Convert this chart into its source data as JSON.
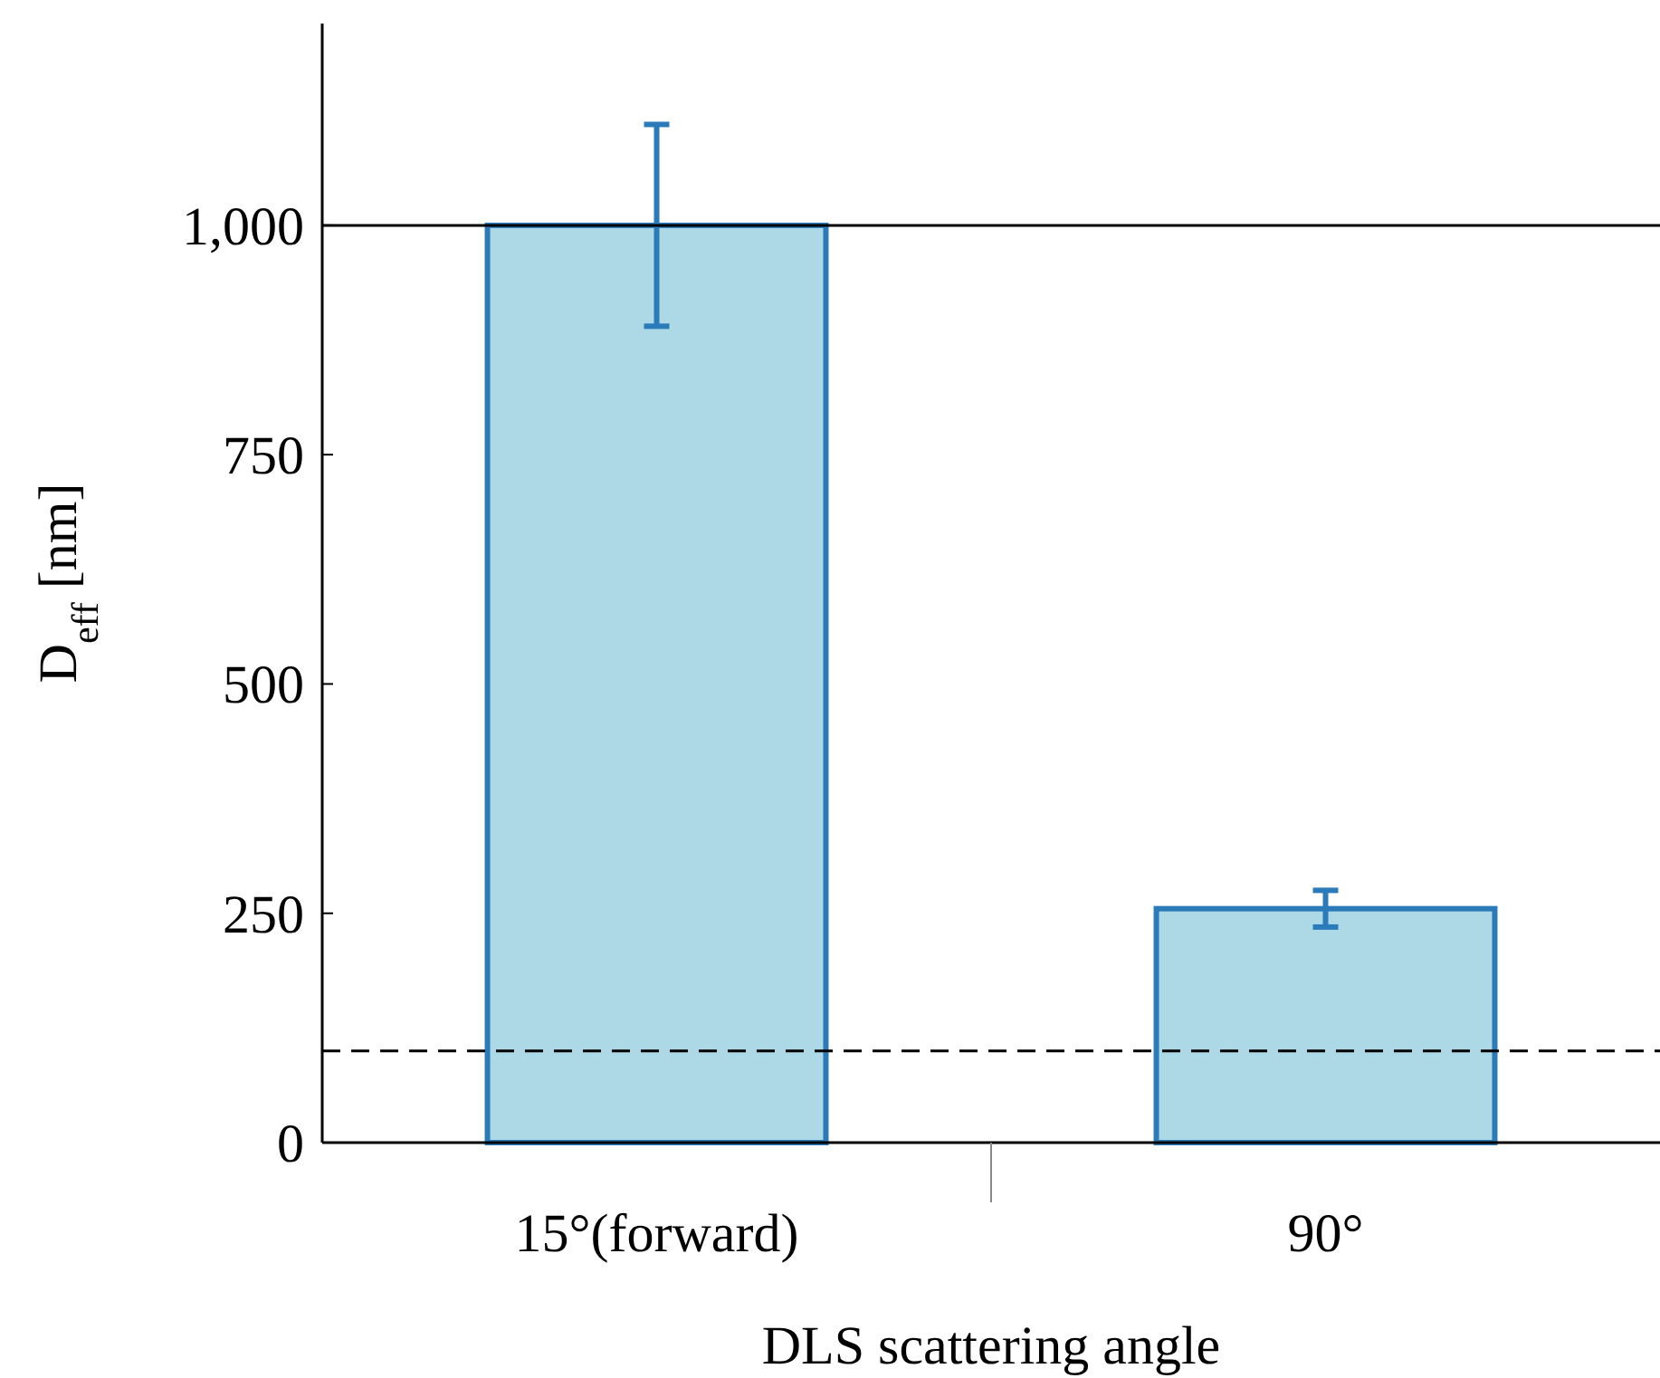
{
  "chart_data": {
    "type": "bar",
    "xlabel": "DLS scattering angle",
    "ylabel": "D$_{eff}$ [nm]",
    "categories": [
      "15°(forward)",
      "90°"
    ],
    "series": [
      {
        "color": "#2b7bba",
        "values": [
          1000,
          255
        ],
        "errors": [
          110,
          20
        ]
      }
    ],
    "ylim": [
      0,
      1220
    ],
    "yticks": [
      0,
      250,
      500,
      750,
      {
        "value": 1000,
        "label": "1,000"
      }
    ],
    "ref_lines": [
      {
        "axis": "y",
        "value": 1000,
        "color": "#000000",
        "line_style": "solid"
      },
      {
        "axis": "y",
        "value": 100,
        "color": "#000000",
        "line_style": "dashed"
      }
    ],
    "grid": false
  }
}
